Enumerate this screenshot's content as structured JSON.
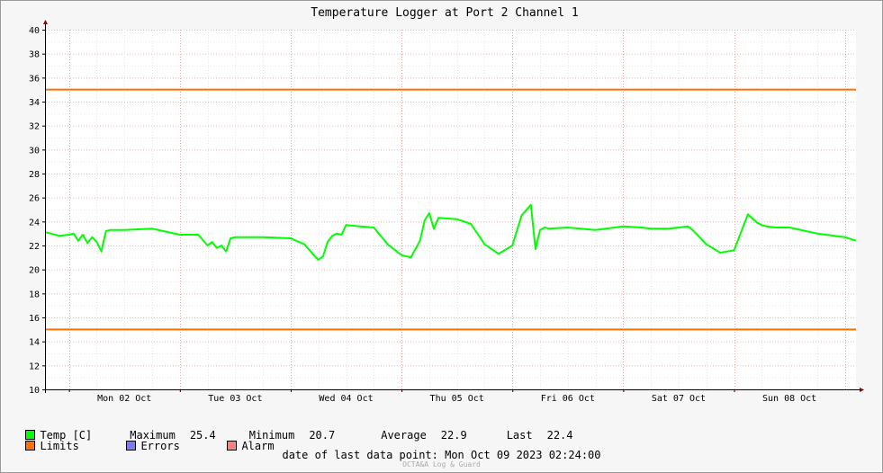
{
  "chart_data": {
    "type": "line",
    "title": "Temperature Logger at Port 2 Channel 1",
    "ylim": [
      10,
      40
    ],
    "yticks": [
      10,
      12,
      14,
      16,
      18,
      20,
      22,
      24,
      26,
      28,
      30,
      32,
      34,
      36,
      38,
      40
    ],
    "xlim": [
      "2023-10-01 19:00",
      "2023-10-09 02:24"
    ],
    "xtick_labels": [
      "Mon 02 Oct",
      "Tue 03 Oct",
      "Wed 04 Oct",
      "Thu 05 Oct",
      "Fri 06 Oct",
      "Sat 07 Oct",
      "Sun 08 Oct"
    ],
    "grid": true,
    "series": [
      {
        "name": "Temp [C]",
        "color": "#00ff00",
        "x": [
          "2023-10-01 19:00",
          "2023-10-01 22:00",
          "2023-10-02 00:00",
          "2023-10-02 01:00",
          "2023-10-02 02:00",
          "2023-10-02 03:00",
          "2023-10-02 04:00",
          "2023-10-02 05:00",
          "2023-10-02 06:00",
          "2023-10-02 07:00",
          "2023-10-02 08:00",
          "2023-10-02 09:00",
          "2023-10-02 12:00",
          "2023-10-02 18:00",
          "2023-10-03 00:00",
          "2023-10-03 04:00",
          "2023-10-03 06:00",
          "2023-10-03 07:00",
          "2023-10-03 08:00",
          "2023-10-03 09:00",
          "2023-10-03 10:00",
          "2023-10-03 11:00",
          "2023-10-03 12:00",
          "2023-10-03 18:00",
          "2023-10-04 00:00",
          "2023-10-04 03:00",
          "2023-10-04 05:00",
          "2023-10-04 06:00",
          "2023-10-04 07:00",
          "2023-10-04 08:00",
          "2023-10-04 09:00",
          "2023-10-04 10:00",
          "2023-10-04 11:00",
          "2023-10-04 12:00",
          "2023-10-04 15:00",
          "2023-10-04 18:00",
          "2023-10-04 21:00",
          "2023-10-05 00:00",
          "2023-10-05 02:00",
          "2023-10-05 04:00",
          "2023-10-05 05:00",
          "2023-10-05 06:00",
          "2023-10-05 07:00",
          "2023-10-05 08:00",
          "2023-10-05 12:00",
          "2023-10-05 15:00",
          "2023-10-05 18:00",
          "2023-10-05 21:00",
          "2023-10-06 00:00",
          "2023-10-06 02:00",
          "2023-10-06 04:00",
          "2023-10-06 05:00",
          "2023-10-06 06:00",
          "2023-10-06 07:00",
          "2023-10-06 08:00",
          "2023-10-06 12:00",
          "2023-10-06 18:00",
          "2023-10-07 00:00",
          "2023-10-07 04:00",
          "2023-10-07 06:00",
          "2023-10-07 10:00",
          "2023-10-07 14:00",
          "2023-10-07 15:00",
          "2023-10-07 18:00",
          "2023-10-07 21:00",
          "2023-10-08 00:00",
          "2023-10-08 03:00",
          "2023-10-08 05:00",
          "2023-10-08 06:00",
          "2023-10-08 07:00",
          "2023-10-08 09:00",
          "2023-10-08 12:00",
          "2023-10-08 18:00",
          "2023-10-09 00:00",
          "2023-10-09 02:24"
        ],
        "y": [
          23.1,
          22.8,
          22.9,
          23.0,
          22.4,
          22.9,
          22.2,
          22.7,
          22.3,
          21.5,
          23.2,
          23.3,
          23.3,
          23.4,
          22.9,
          22.9,
          22.0,
          22.3,
          21.8,
          22.0,
          21.5,
          22.6,
          22.7,
          22.7,
          22.6,
          22.1,
          21.2,
          20.8,
          21.1,
          22.3,
          22.8,
          23.0,
          22.9,
          23.7,
          23.6,
          23.5,
          22.1,
          21.2,
          21.0,
          22.4,
          24.1,
          24.7,
          23.4,
          24.3,
          24.2,
          23.8,
          22.1,
          21.3,
          22.0,
          24.5,
          25.4,
          21.7,
          23.3,
          23.5,
          23.4,
          23.5,
          23.3,
          23.6,
          23.5,
          23.4,
          23.4,
          23.6,
          23.3,
          22.1,
          21.4,
          21.6,
          24.6,
          23.9,
          23.7,
          23.6,
          23.5,
          23.5,
          23.0,
          22.7,
          22.4
        ]
      },
      {
        "name": "Limits",
        "color": "#ff7000",
        "upper": 35,
        "lower": 15
      }
    ],
    "extra_legend": [
      {
        "name": "Errors",
        "color": "#7a7aff"
      },
      {
        "name": "Alarm",
        "color": "#ff8080"
      }
    ]
  },
  "stats": {
    "maximum_label": "Maximum",
    "maximum": "25.4",
    "minimum_label": "Minimum",
    "minimum": "20.7",
    "average_label": "Average",
    "average": "22.9",
    "last_label": "Last",
    "last": "22.4"
  },
  "footer": "date of last data point:  Mon Oct 09 2023 02:24:00",
  "watermark": "OCTA&A Log & Guard"
}
